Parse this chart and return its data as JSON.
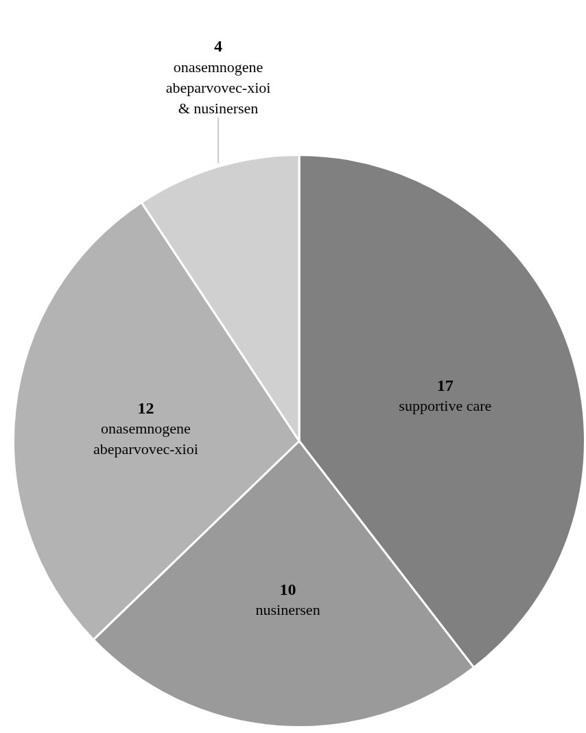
{
  "chart_data": {
    "type": "pie",
    "categories": [
      "supportive care",
      "nusinersen",
      "onasemnogene abeparvovec-xioi",
      "onasemnogene abeparvovec-xioi & nusinersen"
    ],
    "values": [
      17,
      10,
      12,
      4
    ],
    "colors": [
      "#808080",
      "#9a9a9a",
      "#b3b3b3",
      "#d0d0d0"
    ],
    "data_labels": true
  }
}
